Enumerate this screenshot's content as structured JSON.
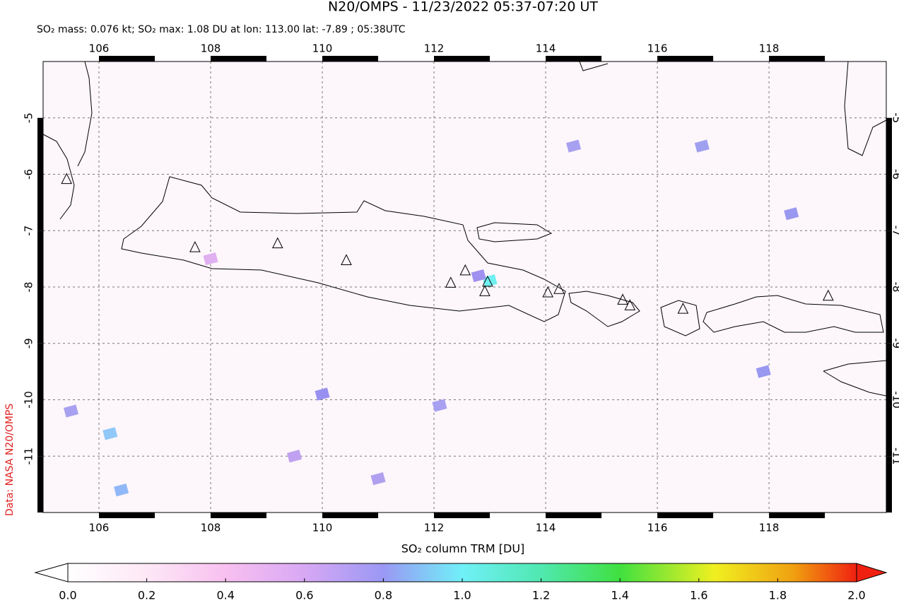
{
  "chart_data": {
    "type": "map",
    "title": "N20/OMPS - 11/23/2022 05:37-07:20 UT",
    "subtitle": "SO₂ mass: 0.076 kt; SO₂ max: 1.08 DU at lon: 113.00 lat: -7.89 ; 05:38UTC",
    "side_label": "Data: NASA N20/OMPS",
    "colorbar_label": "SO₂ column TRM [DU]",
    "xlim": [
      105.0,
      120.1
    ],
    "ylim": [
      -12.0,
      -4.0
    ],
    "xticks": [
      106,
      108,
      110,
      112,
      114,
      116,
      118
    ],
    "yticks": [
      -5,
      -6,
      -7,
      -8,
      -9,
      -10,
      -11
    ],
    "grid": true,
    "volcanoes": {
      "lon": [
        105.42,
        107.72,
        109.2,
        110.43,
        112.3,
        112.56,
        112.91,
        112.96,
        114.04,
        114.24,
        115.38,
        115.51,
        116.46,
        119.06
      ],
      "lat": [
        -6.09,
        -7.3,
        -7.23,
        -7.53,
        -7.93,
        -7.71,
        -8.08,
        -7.91,
        -8.1,
        -8.04,
        -8.23,
        -8.33,
        -8.39,
        -8.16
      ]
    },
    "pixels": {
      "lon": [
        113.0,
        112.8,
        106.4,
        106.2,
        110.0,
        112.1,
        111.0,
        118.4,
        117.9,
        114.5,
        105.5,
        108.0,
        116.8,
        109.5
      ],
      "lat": [
        -7.89,
        -7.8,
        -11.6,
        -10.6,
        -9.9,
        -10.1,
        -11.4,
        -6.7,
        -9.5,
        -5.5,
        -10.2,
        -7.5,
        -5.5,
        -11.0
      ],
      "values": [
        1.08,
        0.7,
        0.8,
        0.9,
        0.6,
        0.55,
        0.55,
        0.65,
        0.65,
        0.6,
        0.6,
        0.45,
        0.6,
        0.5
      ],
      "colors": [
        "#70f0f0",
        "#a090f0",
        "#90b8f8",
        "#90c8f8",
        "#9890f0",
        "#a8a0f0",
        "#b0a0f0",
        "#9898f0",
        "#9898f0",
        "#a8a0f0",
        "#a8a0f0",
        "#e0b0f0",
        "#a0a0f0",
        "#c0a0f0"
      ]
    },
    "colorbar": {
      "lim": [
        0.0,
        2.0
      ],
      "ticks": [
        {
          "value": 0,
          "label": "0.0"
        },
        {
          "value": 0.2,
          "label": "0.2"
        },
        {
          "value": 0.4,
          "label": "0.4"
        },
        {
          "value": 0.6,
          "label": "0.6"
        },
        {
          "value": 0.8,
          "label": "0.8"
        },
        {
          "value": 1,
          "label": "1.0"
        },
        {
          "value": 1.2,
          "label": "1.2"
        },
        {
          "value": 1.4,
          "label": "1.4"
        },
        {
          "value": 1.6,
          "label": "1.6"
        },
        {
          "value": 1.8,
          "label": "1.8"
        },
        {
          "value": 2,
          "label": "2.0"
        }
      ]
    }
  }
}
